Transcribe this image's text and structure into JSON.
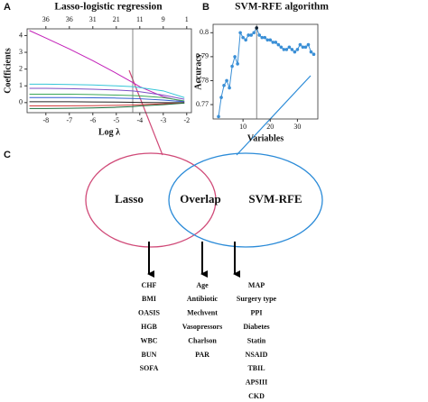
{
  "panel_labels": [
    "A",
    "B",
    "C"
  ],
  "chart_data": [
    {
      "type": "line",
      "title": "Lasso-logistic regression",
      "x_label": "Log λ",
      "y_label": "Coefficients",
      "x": [
        -8.7,
        -8,
        -7,
        -6,
        -5,
        -4.3,
        -4,
        -3,
        -2.1
      ],
      "series": [
        {
          "color": "#c21fb8",
          "values": [
            4.3,
            3.85,
            3.2,
            2.5,
            1.75,
            1.2,
            0.95,
            0.35,
            0.05
          ]
        },
        {
          "color": "#34c6d8",
          "values": [
            1.1,
            1.1,
            1.08,
            1.05,
            1.0,
            0.95,
            0.9,
            0.7,
            0.3
          ]
        },
        {
          "color": "#7b4fc4",
          "values": [
            0.85,
            0.85,
            0.83,
            0.8,
            0.75,
            0.7,
            0.65,
            0.45,
            0.2
          ]
        },
        {
          "color": "#3aa655",
          "values": [
            0.5,
            0.5,
            0.5,
            0.48,
            0.45,
            0.42,
            0.4,
            0.3,
            0.1
          ]
        },
        {
          "color": "#2f5fd0",
          "values": [
            0.3,
            0.3,
            0.3,
            0.29,
            0.27,
            0.25,
            0.23,
            0.15,
            0.05
          ]
        },
        {
          "color": "#222222",
          "values": [
            0.05,
            0.05,
            0.05,
            0.04,
            0.03,
            0.02,
            0.01,
            0,
            0
          ]
        },
        {
          "color": "#d23a3a",
          "values": [
            -0.2,
            -0.2,
            -0.19,
            -0.18,
            -0.16,
            -0.14,
            -0.12,
            -0.07,
            -0.02
          ]
        },
        {
          "color": "#1b6b3a",
          "values": [
            -0.35,
            -0.35,
            -0.34,
            -0.32,
            -0.28,
            -0.24,
            -0.2,
            -0.12,
            -0.03
          ]
        }
      ],
      "xlim": [
        -8.8,
        -1.8
      ],
      "xticks": [
        -8,
        -7,
        -6,
        -5,
        -4,
        -3,
        -2
      ],
      "ylim": [
        -0.6,
        4.4
      ],
      "yticks": [
        0,
        1,
        2,
        3,
        4
      ],
      "x2ticks": [
        {
          "value": -8,
          "label": "36"
        },
        {
          "value": -7,
          "label": "36"
        },
        {
          "value": -6,
          "label": "31"
        },
        {
          "value": -5,
          "label": "21"
        },
        {
          "value": -4,
          "label": "11"
        },
        {
          "value": -3,
          "label": "9"
        },
        {
          "value": -2,
          "label": "1"
        }
      ],
      "vline": -4.3,
      "markers": false
    },
    {
      "type": "line",
      "title": "SVM-RFE algorithm",
      "x_label": "Variables",
      "y_label": "Accuracy",
      "x": [
        1,
        2,
        3,
        4,
        5,
        6,
        7,
        8,
        9,
        10,
        11,
        12,
        13,
        14,
        15,
        16,
        17,
        18,
        19,
        20,
        21,
        22,
        23,
        24,
        25,
        26,
        27,
        28,
        29,
        30,
        31,
        32,
        33,
        34,
        35,
        36
      ],
      "series": [
        {
          "color": "#3a8fd6",
          "values": [
            0.765,
            0.773,
            0.778,
            0.78,
            0.777,
            0.786,
            0.79,
            0.787,
            0.8,
            0.798,
            0.797,
            0.799,
            0.799,
            0.8,
            0.802,
            0.799,
            0.798,
            0.798,
            0.797,
            0.797,
            0.796,
            0.796,
            0.795,
            0.794,
            0.793,
            0.793,
            0.794,
            0.793,
            0.792,
            0.793,
            0.795,
            0.794,
            0.794,
            0.795,
            0.792,
            0.791
          ]
        }
      ],
      "xlim": [
        -1,
        37.5
      ],
      "xticks": [
        10,
        20,
        30
      ],
      "ylim": [
        0.764,
        0.8035
      ],
      "yticks": [
        0.77,
        0.78,
        0.79,
        0.8
      ],
      "vline": 15,
      "markers": true
    }
  ],
  "venn": {
    "sets": [
      "Lasso",
      "Overlap",
      "SVM-RFE"
    ],
    "lists": [
      [
        "CHF",
        "BMI",
        "OASIS",
        "HGB",
        "WBC",
        "BUN",
        "SOFA"
      ],
      [
        "Age",
        "Antibiotic",
        "Mechvent",
        "Vasopressors",
        "Charlson",
        "PAR"
      ],
      [
        "MAP",
        "Surgery type",
        "PPI",
        "Diabetes",
        "Statin",
        "NSAID",
        "TBIL",
        "APSIII",
        "CKD"
      ]
    ]
  }
}
